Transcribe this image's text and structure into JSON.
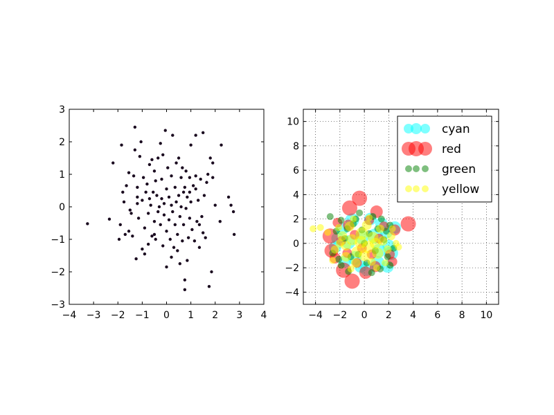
{
  "chart_data": [
    {
      "type": "scatter",
      "xlim": [
        -4,
        4
      ],
      "ylim": [
        -3,
        3
      ],
      "xticks": [
        "−4",
        "−3",
        "−2",
        "−1",
        "0",
        "1",
        "2",
        "3",
        "4"
      ],
      "yticks": [
        "−3",
        "−2",
        "−1",
        "0",
        "1",
        "2",
        "3"
      ],
      "grid": false,
      "marker_color": "#1a0a1f",
      "points": [
        [
          -3.25,
          -0.52
        ],
        [
          -2.35,
          -0.38
        ],
        [
          -2.2,
          1.35
        ],
        [
          -1.95,
          -1.0
        ],
        [
          -1.9,
          -0.55
        ],
        [
          -1.85,
          1.9
        ],
        [
          -1.8,
          0.45
        ],
        [
          -1.75,
          0.15
        ],
        [
          -1.7,
          -0.85
        ],
        [
          -1.65,
          0.65
        ],
        [
          -1.55,
          1.05
        ],
        [
          -1.5,
          -0.1
        ],
        [
          -1.45,
          -0.2
        ],
        [
          -1.4,
          -0.9
        ],
        [
          -1.35,
          0.95
        ],
        [
          -1.3,
          2.45
        ],
        [
          -1.3,
          1.75
        ],
        [
          -1.25,
          -1.6
        ],
        [
          -1.2,
          0.6
        ],
        [
          -1.2,
          0.3
        ],
        [
          -1.15,
          -0.35
        ],
        [
          -1.1,
          1.55
        ],
        [
          -1.05,
          2.0
        ],
        [
          -1.0,
          0.2
        ],
        [
          -1.0,
          -1.3
        ],
        [
          -0.95,
          0.9
        ],
        [
          -0.9,
          -0.65
        ],
        [
          -0.85,
          0.45
        ],
        [
          -0.8,
          0.7
        ],
        [
          -0.75,
          -0.2
        ],
        [
          -0.75,
          -1.15
        ],
        [
          -0.7,
          1.3
        ],
        [
          -0.65,
          0.05
        ],
        [
          -0.6,
          -0.9
        ],
        [
          -0.55,
          0.45
        ],
        [
          -0.5,
          1.1
        ],
        [
          -0.5,
          -0.45
        ],
        [
          -0.45,
          0.8
        ],
        [
          -0.45,
          -1.0
        ],
        [
          -0.4,
          0.35
        ],
        [
          -0.35,
          -0.15
        ],
        [
          -0.35,
          1.5
        ],
        [
          -0.3,
          0.0
        ],
        [
          -0.25,
          -0.55
        ],
        [
          -0.2,
          0.25
        ],
        [
          -0.2,
          0.85
        ],
        [
          -0.15,
          1.6
        ],
        [
          -0.15,
          -1.2
        ],
        [
          -0.1,
          0.1
        ],
        [
          -0.1,
          -0.25
        ],
        [
          -0.05,
          2.35
        ],
        [
          0.0,
          0.55
        ],
        [
          0.0,
          -0.75
        ],
        [
          0.0,
          -1.85
        ],
        [
          0.05,
          1.2
        ],
        [
          0.1,
          0.3
        ],
        [
          0.1,
          -0.4
        ],
        [
          0.15,
          -1.0
        ],
        [
          0.2,
          0.05
        ],
        [
          0.2,
          0.95
        ],
        [
          0.25,
          2.2
        ],
        [
          0.25,
          -0.15
        ],
        [
          0.3,
          -1.25
        ],
        [
          0.35,
          0.6
        ],
        [
          0.35,
          -0.55
        ],
        [
          0.4,
          1.35
        ],
        [
          0.4,
          0.15
        ],
        [
          0.45,
          -0.85
        ],
        [
          0.5,
          0.35
        ],
        [
          0.5,
          1.5
        ],
        [
          0.55,
          -1.75
        ],
        [
          0.55,
          -0.3
        ],
        [
          0.6,
          0.9
        ],
        [
          0.6,
          0.0
        ],
        [
          0.65,
          -1.05
        ],
        [
          0.7,
          0.45
        ],
        [
          0.7,
          -0.55
        ],
        [
          0.75,
          -2.25
        ],
        [
          0.75,
          -2.55
        ],
        [
          0.75,
          0.6
        ],
        [
          0.8,
          1.1
        ],
        [
          0.8,
          -0.05
        ],
        [
          0.85,
          -1.65
        ],
        [
          0.85,
          0.3
        ],
        [
          0.9,
          -0.95
        ],
        [
          0.95,
          0.9
        ],
        [
          0.95,
          -0.35
        ],
        [
          1.0,
          0.15
        ],
        [
          1.05,
          -0.7
        ],
        [
          1.1,
          0.65
        ],
        [
          1.15,
          -1.05
        ],
        [
          1.2,
          2.2
        ],
        [
          1.2,
          0.95
        ],
        [
          1.25,
          -0.45
        ],
        [
          1.3,
          0.2
        ],
        [
          1.35,
          -1.25
        ],
        [
          1.4,
          0.85
        ],
        [
          1.45,
          -0.3
        ],
        [
          1.5,
          2.28
        ],
        [
          1.5,
          -0.8
        ],
        [
          1.55,
          0.35
        ],
        [
          1.6,
          -0.95
        ],
        [
          1.65,
          0.75
        ],
        [
          1.7,
          1.0
        ],
        [
          1.75,
          -2.45
        ],
        [
          1.8,
          1.5
        ],
        [
          1.85,
          -2.0
        ],
        [
          1.9,
          0.9
        ],
        [
          2.0,
          0.05
        ],
        [
          2.2,
          -0.45
        ],
        [
          2.25,
          1.9
        ],
        [
          2.55,
          0.3
        ],
        [
          2.65,
          0.05
        ],
        [
          2.75,
          -0.15
        ],
        [
          2.78,
          -0.85
        ],
        [
          1.9,
          1.35
        ],
        [
          -0.6,
          1.45
        ],
        [
          -0.9,
          -1.45
        ],
        [
          -1.55,
          -0.75
        ],
        [
          0.2,
          -1.55
        ],
        [
          1.0,
          1.9
        ],
        [
          -0.25,
          1.95
        ],
        [
          0.65,
          1.2
        ],
        [
          1.2,
          0.55
        ],
        [
          -1.2,
          0.1
        ],
        [
          -0.7,
          0.25
        ],
        [
          0.45,
          -1.35
        ],
        [
          1.35,
          -0.55
        ],
        [
          -0.5,
          -0.85
        ],
        [
          0.95,
          0.45
        ]
      ]
    },
    {
      "type": "scatter",
      "xlim": [
        -5,
        11
      ],
      "ylim": [
        -5,
        11
      ],
      "xticks": [
        "−4",
        "−2",
        "0",
        "2",
        "4",
        "6",
        "8",
        "10"
      ],
      "yticks": [
        "−4",
        "−2",
        "0",
        "2",
        "4",
        "6",
        "8",
        "10"
      ],
      "grid": true,
      "legend_position": "upper right",
      "series": [
        {
          "name": "cyan",
          "color": "#00ffff",
          "points": [
            [
              -2.2,
              0.4,
              9
            ],
            [
              -1.6,
              -1.5,
              9
            ],
            [
              -1.0,
              1.9,
              10
            ],
            [
              -0.3,
              -1.9,
              9
            ],
            [
              0.5,
              2.0,
              9
            ],
            [
              1.1,
              -1.6,
              10
            ],
            [
              1.8,
              0.9,
              9
            ],
            [
              2.2,
              -0.8,
              10
            ],
            [
              2.5,
              1.3,
              9
            ],
            [
              1.4,
              1.6,
              9
            ],
            [
              -1.8,
              1.2,
              9
            ],
            [
              0.2,
              -2.1,
              10
            ],
            [
              -2.4,
              -0.3,
              9
            ],
            [
              1.9,
              -1.9,
              9
            ],
            [
              -0.8,
              -1.2,
              10
            ],
            [
              0.9,
              0.6,
              11
            ],
            [
              -0.2,
              0.5,
              10
            ],
            [
              1.2,
              -0.6,
              10
            ],
            [
              -1.3,
              0.1,
              10
            ],
            [
              2.0,
              -0.2,
              9
            ]
          ]
        },
        {
          "name": "red",
          "color": "#ff0000",
          "points": [
            [
              -0.4,
              3.7,
              11
            ],
            [
              -1.2,
              2.9,
              11
            ],
            [
              1.0,
              2.6,
              9
            ],
            [
              3.6,
              1.6,
              11
            ],
            [
              -2.8,
              0.6,
              11
            ],
            [
              -2.7,
              -0.6,
              10
            ],
            [
              -1.7,
              -2.2,
              11
            ],
            [
              -1.0,
              -3.1,
              11
            ],
            [
              0.1,
              -2.4,
              9
            ],
            [
              2.5,
              1.1,
              8
            ],
            [
              -2.4,
              -1.2,
              8
            ],
            [
              0.9,
              -1.9,
              8
            ],
            [
              -1.3,
              1.5,
              8
            ],
            [
              1.6,
              1.4,
              7
            ],
            [
              -1.9,
              0.2,
              7
            ],
            [
              2.1,
              -0.9,
              7
            ],
            [
              -0.6,
              -1.6,
              7
            ],
            [
              0.4,
              1.9,
              7
            ],
            [
              -0.2,
              -0.4,
              7
            ],
            [
              1.2,
              0.4,
              7
            ],
            [
              -1.4,
              -0.8,
              7
            ],
            [
              0.6,
              -0.9,
              7
            ],
            [
              -0.8,
              0.7,
              7
            ],
            [
              2.3,
              -1.5,
              7
            ],
            [
              -2.2,
              1.7,
              7
            ]
          ]
        },
        {
          "name": "green",
          "color": "#008000",
          "points": [
            [
              -2.8,
              2.2,
              5
            ],
            [
              -1.9,
              -1.8,
              5
            ],
            [
              -0.4,
              2.5,
              5
            ],
            [
              1.3,
              -2.1,
              5
            ],
            [
              2.1,
              1.5,
              5
            ],
            [
              -2.3,
              1.0,
              5
            ],
            [
              1.9,
              -1.1,
              5
            ],
            [
              -1.3,
              -2.3,
              5
            ],
            [
              0.7,
              2.2,
              5
            ],
            [
              -0.9,
              1.6,
              5
            ],
            [
              0.2,
              -1.6,
              5
            ],
            [
              1.1,
              1.2,
              5
            ],
            [
              -1.6,
              0.4,
              5
            ],
            [
              1.6,
              0.3,
              5
            ],
            [
              -0.5,
              -0.9,
              5
            ],
            [
              0.4,
              0.8,
              5
            ],
            [
              -2.6,
              -0.8,
              5
            ],
            [
              2.4,
              -0.4,
              5
            ],
            [
              -1.1,
              -1.1,
              5
            ],
            [
              0.9,
              -0.6,
              5
            ],
            [
              -0.2,
              1.1,
              5
            ],
            [
              1.4,
              2.0,
              5
            ],
            [
              -1.9,
              1.9,
              5
            ],
            [
              2.1,
              -1.8,
              5
            ],
            [
              0.0,
              0.0,
              5
            ],
            [
              -2.1,
              -1.3,
              5
            ],
            [
              0.6,
              -2.4,
              5
            ],
            [
              -0.7,
              2.0,
              5
            ],
            [
              1.8,
              1.0,
              5
            ],
            [
              -1.4,
              1.2,
              5
            ]
          ]
        },
        {
          "name": "yellow",
          "color": "#ffff00",
          "points": [
            [
              -4.2,
              1.2,
              5
            ],
            [
              -3.6,
              1.3,
              5
            ],
            [
              -3.0,
              0.9,
              5
            ],
            [
              2.8,
              -0.3,
              5
            ],
            [
              -2.4,
              -0.5,
              6
            ],
            [
              -1.8,
              0.6,
              7
            ],
            [
              -1.5,
              -1.1,
              7
            ],
            [
              -1.0,
              0.3,
              8
            ],
            [
              -0.6,
              -0.7,
              8
            ],
            [
              -0.2,
              0.8,
              9
            ],
            [
              0.3,
              -0.3,
              9
            ],
            [
              0.7,
              0.5,
              8
            ],
            [
              1.1,
              -0.8,
              8
            ],
            [
              1.5,
              0.2,
              7
            ],
            [
              1.9,
              -0.5,
              6
            ],
            [
              -1.2,
              1.4,
              7
            ],
            [
              0.2,
              1.5,
              7
            ],
            [
              1.3,
              1.2,
              6
            ],
            [
              -0.7,
              -1.6,
              7
            ],
            [
              0.6,
              -1.5,
              6
            ],
            [
              -2.0,
              0.0,
              6
            ],
            [
              2.2,
              0.6,
              6
            ],
            [
              -0.3,
              0.1,
              9
            ],
            [
              0.9,
              0.0,
              8
            ],
            [
              -1.5,
              -0.2,
              7
            ],
            [
              0.0,
              -1.0,
              8
            ],
            [
              1.7,
              -1.6,
              5
            ],
            [
              -2.1,
              1.3,
              5
            ],
            [
              0.4,
              2.1,
              5
            ],
            [
              -0.9,
              2.0,
              5
            ],
            [
              2.3,
              1.2,
              5
            ],
            [
              -2.6,
              -1.4,
              5
            ],
            [
              1.0,
              -2.0,
              5
            ],
            [
              -1.1,
              -2.1,
              5
            ],
            [
              2.6,
              0.0,
              5
            ]
          ]
        }
      ]
    }
  ]
}
